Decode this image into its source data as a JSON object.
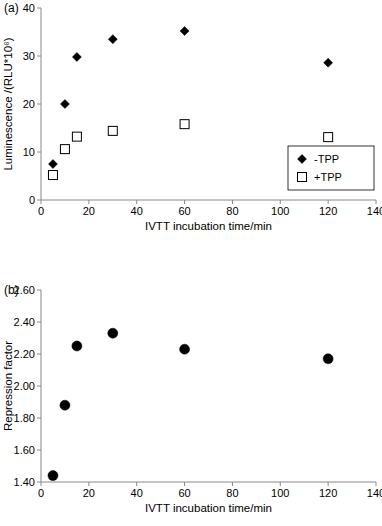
{
  "chart_data": [
    {
      "type": "scatter",
      "title": "(a)",
      "x_label": "IVTT incubation time/min",
      "y_label": "Luminescence /(RLU*10⁶)",
      "x": [
        5,
        10,
        15,
        30,
        60,
        120
      ],
      "series": [
        {
          "name": "-TPP",
          "color": "#000000",
          "marker": "diamond",
          "values": [
            7.5,
            20.0,
            29.8,
            33.5,
            35.2,
            28.6
          ]
        },
        {
          "name": "+TPP",
          "color": "#000000",
          "marker": "open-square",
          "values": [
            5.2,
            10.6,
            13.2,
            14.4,
            15.8,
            13.1
          ]
        }
      ],
      "xlim": [
        0,
        140
      ],
      "xticks": [
        0,
        20,
        40,
        60,
        80,
        100,
        120,
        140
      ],
      "ylim": [
        0,
        40
      ],
      "yticks": [
        0,
        10,
        20,
        30,
        40
      ],
      "legend": "lower right",
      "grid": false
    },
    {
      "type": "scatter",
      "title": "(b)",
      "x_label": "IVTT incubation time/min",
      "y_label": "Repression factor",
      "x": [
        5,
        10,
        15,
        30,
        60,
        120
      ],
      "values": [
        1.44,
        1.88,
        2.25,
        2.33,
        2.23,
        2.17
      ],
      "color": "#000000",
      "marker": "circle",
      "xlim": [
        0,
        140
      ],
      "xticks": [
        0,
        20,
        40,
        60,
        80,
        100,
        120,
        140
      ],
      "ylim": [
        1.4,
        2.6
      ],
      "yticks": [
        {
          "value": 1.4,
          "label": "1.40"
        },
        {
          "value": 1.6,
          "label": "1.60"
        },
        {
          "value": 1.8,
          "label": "1.80"
        },
        {
          "value": 2.0,
          "label": "2.00"
        },
        {
          "value": 2.2,
          "label": "2.20"
        },
        {
          "value": 2.4,
          "label": "2.40"
        },
        {
          "value": 2.6,
          "label": "2.60"
        }
      ],
      "grid": false
    }
  ]
}
